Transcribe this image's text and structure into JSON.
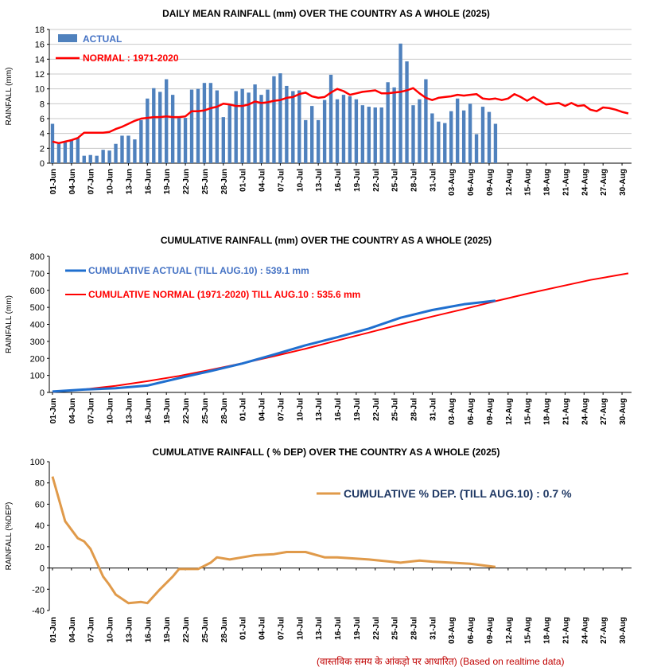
{
  "colors": {
    "actual_bar": "#4f81bd",
    "normal_line": "#ff0000",
    "cum_actual_line": "#1f6fcf",
    "dep_line": "#e09a4a",
    "title_text": "#000000",
    "legend_blue_text": "#4472c4",
    "legend_red_text": "#ff0000",
    "dep_legend_text": "#1f3864",
    "footer_text": "#c00000"
  },
  "x_ticks": [
    "01-Jun",
    "04-Jun",
    "07-Jun",
    "10-Jun",
    "13-Jun",
    "16-Jun",
    "19-Jun",
    "22-Jun",
    "25-Jun",
    "28-Jun",
    "01-Jul",
    "04-Jul",
    "07-Jul",
    "10-Jul",
    "13-Jul",
    "16-Jul",
    "19-Jul",
    "22-Jul",
    "25-Jul",
    "28-Jul",
    "31-Jul",
    "03-Aug",
    "06-Aug",
    "09-Aug",
    "12-Aug",
    "15-Aug",
    "18-Aug",
    "21-Aug",
    "24-Aug",
    "27-Aug",
    "30-Aug"
  ],
  "chart_data": [
    {
      "type": "bar",
      "title": "DAILY MEAN RAINFALL (mm) OVER THE COUNTRY AS A WHOLE  (2025)",
      "ylabel": "RAINFALL  (mm)",
      "ylim": [
        0,
        18
      ],
      "yticks": [
        0,
        2,
        4,
        6,
        8,
        10,
        12,
        14,
        16,
        18
      ],
      "grid": true,
      "legend": "top-left",
      "series": [
        {
          "name": "ACTUAL",
          "kind": "bar",
          "values": [
            5.3,
            2.6,
            2.8,
            3.2,
            3.4,
            1.0,
            1.1,
            1.0,
            1.8,
            1.7,
            2.6,
            3.7,
            3.7,
            3.2,
            5.8,
            8.7,
            10.1,
            9.6,
            11.3,
            9.2,
            6.1,
            6.1,
            9.9,
            10.0,
            10.8,
            10.8,
            9.8,
            6.2,
            8.0,
            9.7,
            10.0,
            9.5,
            10.6,
            9.2,
            9.9,
            11.7,
            12.1,
            10.4,
            9.7,
            9.8,
            5.8,
            7.7,
            5.8,
            8.5,
            11.9,
            8.6,
            9.2,
            9.0,
            8.6,
            7.8,
            7.6,
            7.5,
            7.5,
            10.9,
            10.2,
            16.1,
            13.7,
            7.8,
            8.6,
            11.3,
            6.7,
            5.6,
            5.4,
            7.0,
            8.7,
            7.1,
            8.0,
            3.9,
            7.6,
            6.9,
            5.3
          ]
        },
        {
          "name": "NORMAL : 1971-2020",
          "kind": "line",
          "values": [
            2.9,
            2.7,
            2.9,
            3.1,
            3.4,
            4.1,
            4.1,
            4.1,
            4.1,
            4.2,
            4.6,
            4.9,
            5.3,
            5.7,
            6.0,
            6.1,
            6.2,
            6.2,
            6.3,
            6.2,
            6.2,
            6.3,
            7.0,
            7.0,
            7.1,
            7.4,
            7.6,
            8.0,
            7.9,
            7.7,
            7.7,
            7.9,
            8.3,
            8.1,
            8.2,
            8.4,
            8.5,
            8.8,
            8.9,
            9.3,
            9.5,
            9.0,
            8.8,
            8.9,
            9.5,
            10.0,
            9.7,
            9.2,
            9.4,
            9.6,
            9.7,
            9.8,
            9.4,
            9.4,
            9.5,
            9.6,
            9.8,
            10.1,
            9.4,
            8.8,
            8.5,
            8.8,
            8.9,
            9.0,
            9.2,
            9.1,
            9.2,
            9.3,
            8.7,
            8.6,
            8.7,
            8.5,
            8.7,
            9.3,
            8.9,
            8.4,
            8.9,
            8.4,
            7.9,
            8.0,
            8.1,
            7.7,
            8.1,
            7.7,
            7.8,
            7.2,
            7.0,
            7.5,
            7.4,
            7.2,
            6.9,
            6.7
          ]
        }
      ]
    },
    {
      "type": "line",
      "title": "CUMULATIVE  RAINFALL (mm) OVER THE COUNTRY AS A WHOLE  (2025)",
      "ylabel": "RAINFALL   (mm)",
      "ylim": [
        0,
        800
      ],
      "yticks": [
        0,
        100,
        200,
        300,
        400,
        500,
        600,
        700,
        800
      ],
      "grid": false,
      "legend": "top-left",
      "series": [
        {
          "name": "CUMULATIVE ACTUAL (TILL AUG.10) : 539.1 mm",
          "x_days": [
            0,
            5,
            10,
            15,
            20,
            25,
            30,
            35,
            40,
            45,
            50,
            55,
            60,
            65,
            70
          ],
          "values": [
            5,
            17,
            25,
            40,
            84,
            126,
            170,
            222,
            277,
            324,
            375,
            439,
            484,
            518,
            539
          ]
        },
        {
          "name": "CUMULATIVE NORMAL (1971-2020) TILL AUG.10 : 535.6 mm",
          "x_days": [
            0,
            5,
            10,
            15,
            20,
            25,
            30,
            35,
            40,
            45,
            50,
            55,
            60,
            65,
            70,
            75,
            80,
            85,
            91
          ],
          "values": [
            3,
            18,
            39,
            66,
            97,
            133,
            171,
            213,
            257,
            305,
            352,
            400,
            446,
            490,
            536,
            580,
            621,
            661,
            700
          ]
        }
      ]
    },
    {
      "type": "line",
      "title": "CUMULATIVE RAINFALL ( % DEP) OVER THE COUNTRY AS A WHOLE (2025)",
      "ylabel": "RAINFALL  (%DEP)",
      "ylim": [
        -40,
        100
      ],
      "yticks": [
        -40,
        -20,
        0,
        20,
        40,
        60,
        80,
        100
      ],
      "grid": false,
      "legend": "center-right",
      "annotation": "CUMULATIVE % DEP.  (TILL  AUG.10) : 0.7 %",
      "series": [
        {
          "name": "CUMULATIVE % DEP.  (TILL  AUG.10) : 0.7 %",
          "x_days": [
            0,
            2,
            4,
            5,
            6,
            7,
            8,
            9,
            10,
            12,
            14,
            15,
            17,
            19,
            20,
            21,
            23,
            25,
            26,
            28,
            30,
            32,
            35,
            37,
            40,
            43,
            45,
            50,
            55,
            58,
            60,
            63,
            66,
            70
          ],
          "values": [
            86,
            44,
            28,
            25,
            18,
            5,
            -8,
            -16,
            -25,
            -33,
            -32,
            -33,
            -20,
            -8,
            -1,
            -1,
            -1,
            5,
            10,
            8,
            10,
            12,
            13,
            15,
            15,
            10,
            10,
            8,
            5,
            7,
            6,
            5,
            4,
            1
          ]
        }
      ]
    }
  ],
  "footer": {
    "hindi": "(वास्तविक समय के आंकड़ो पर आधारित)",
    "english": "(Based on realtime data)"
  }
}
